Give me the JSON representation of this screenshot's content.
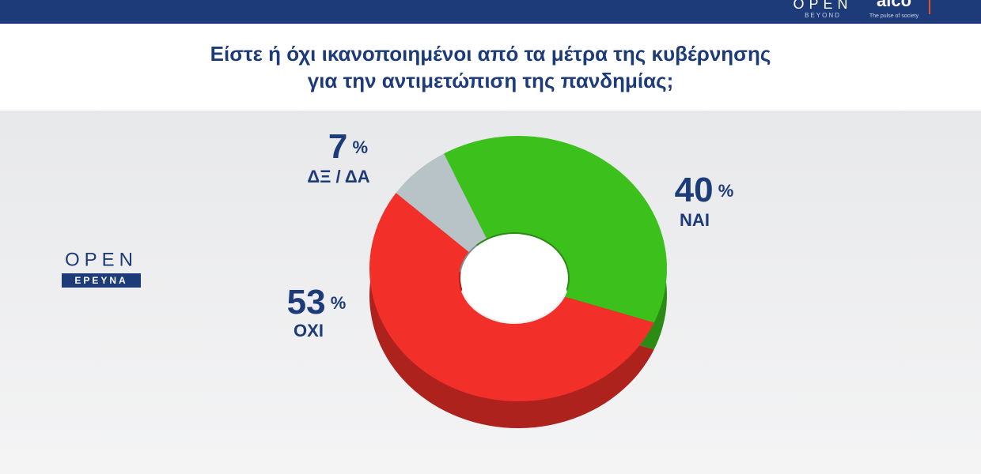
{
  "chart_data": {
    "type": "donut",
    "title": [
      "Είστε ή όχι ικανοποιημένοι από τα μέτρα της κυβέρνησης",
      "για την αντιμετώπιση της πανδημίας;"
    ],
    "categories": [
      "ΝΑΙ",
      "ΟΧΙ",
      "ΔΞ / ΔΑ"
    ],
    "values": [
      40,
      53,
      7
    ],
    "value_labels": [
      "40 %",
      "53 %",
      "7 %"
    ],
    "colors": [
      "#3cc11c",
      "#f22f29",
      "#b7c3c7"
    ]
  },
  "logos": {
    "open_main": "OPEN",
    "open_sub": "ΕΡΕΥΝΑ",
    "header_brand": "OPEN",
    "header_brand_sub": "BEYOND",
    "partner": "alco",
    "partner_tagline": "The pulse of society"
  }
}
